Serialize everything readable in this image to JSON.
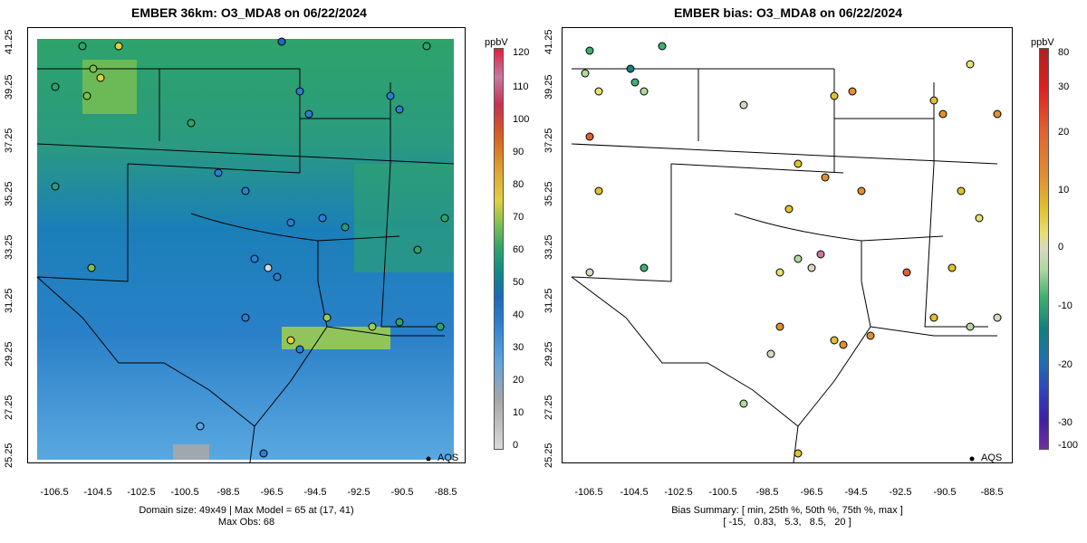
{
  "left_panel": {
    "title": "EMBER 36km: O3_MDA8 on 06/22/2024",
    "x_ticks": [
      "-106.5",
      "-104.5",
      "-102.5",
      "-100.5",
      "-98.5",
      "-96.5",
      "-94.5",
      "-92.5",
      "-90.5",
      "-88.5"
    ],
    "y_ticks": [
      "25.25",
      "27.25",
      "29.25",
      "31.25",
      "33.25",
      "35.25",
      "37.25",
      "39.25",
      "41.25"
    ],
    "footer_line1": "Domain size: 49x49 | Max Model = 65 at (17, 41)",
    "footer_line2": "Max Obs: 68",
    "legend_label": "AQS",
    "colorbar": {
      "unit": "ppbV",
      "ticks": [
        "0",
        "10",
        "20",
        "30",
        "40",
        "50",
        "60",
        "70",
        "80",
        "90",
        "100",
        "110",
        "120"
      ],
      "colors": [
        "#d9d9d9",
        "#a8a8a8",
        "#5ea3e0",
        "#2a7fd0",
        "#1a6ab8",
        "#0e8a8a",
        "#2ea36a",
        "#7cc050",
        "#e0d040",
        "#e0a030",
        "#d86020",
        "#c83050",
        "#c878a0",
        "#e02040"
      ]
    }
  },
  "right_panel": {
    "title": "EMBER bias: O3_MDA8 on 06/22/2024",
    "x_ticks": [
      "-106.5",
      "-104.5",
      "-102.5",
      "-100.5",
      "-98.5",
      "-96.5",
      "-94.5",
      "-92.5",
      "-90.5",
      "-88.5"
    ],
    "y_ticks": [
      "25.25",
      "27.25",
      "29.25",
      "31.25",
      "33.25",
      "35.25",
      "37.25",
      "39.25",
      "41.25"
    ],
    "footer_line1": "Bias Summary: [ min, 25th %, 50th %, 75th %, max ]",
    "footer_line2": "[ -15,   0.83,   5.3,   8.5,   20 ]",
    "legend_label": "AQS",
    "colorbar": {
      "unit": "ppbV",
      "ticks": [
        "80",
        "30",
        "20",
        "10",
        "0",
        "-10",
        "-20",
        "-30",
        "-100"
      ],
      "colors": [
        "#b02020",
        "#e02020",
        "#e06030",
        "#e09030",
        "#e0c030",
        "#e8e070",
        "#d8d8c0",
        "#b0d8a0",
        "#40b070",
        "#108080",
        "#2070b0",
        "#3040c0",
        "#4020a0",
        "#7030a0"
      ]
    }
  }
}
